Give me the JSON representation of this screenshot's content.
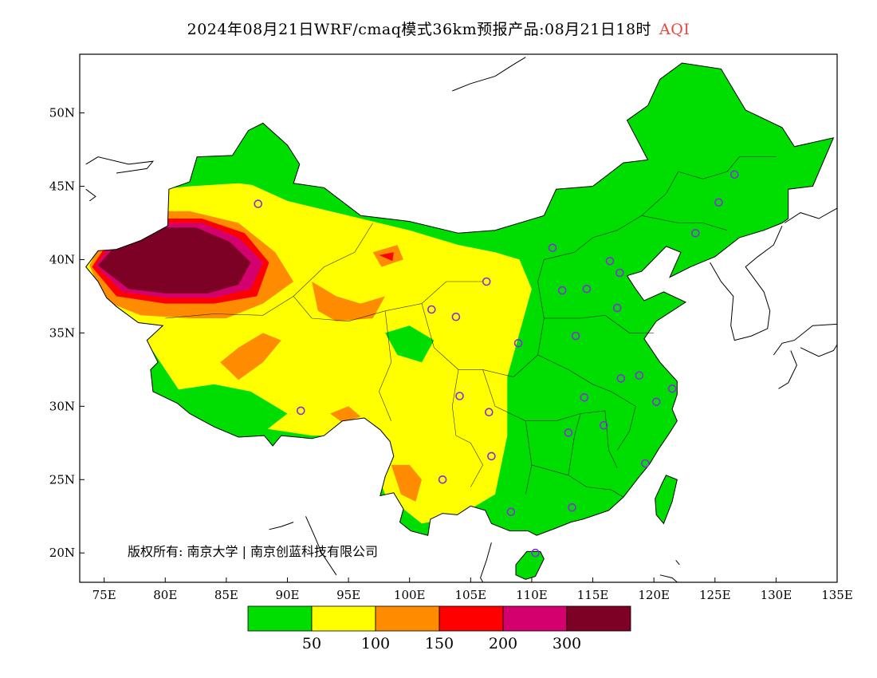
{
  "title": {
    "main": "2024年08月21日WRF/cmaq模式36km预报产品:08月21日18时",
    "highlight": "AQI"
  },
  "map_view": {
    "lon_min": 73,
    "lon_max": 135,
    "lat_min": 18,
    "lat_max": 54
  },
  "lat_ticks": [
    {
      "value": 50,
      "label": "50N"
    },
    {
      "value": 45,
      "label": "45N"
    },
    {
      "value": 40,
      "label": "40N"
    },
    {
      "value": 35,
      "label": "35N"
    },
    {
      "value": 30,
      "label": "30N"
    },
    {
      "value": 25,
      "label": "25N"
    },
    {
      "value": 20,
      "label": "20N"
    }
  ],
  "lon_ticks": [
    {
      "value": 75,
      "label": "75E"
    },
    {
      "value": 80,
      "label": "80E"
    },
    {
      "value": 85,
      "label": "85E"
    },
    {
      "value": 90,
      "label": "90E"
    },
    {
      "value": 95,
      "label": "95E"
    },
    {
      "value": 100,
      "label": "100E"
    },
    {
      "value": 105,
      "label": "105E"
    },
    {
      "value": 110,
      "label": "110E"
    },
    {
      "value": 115,
      "label": "115E"
    },
    {
      "value": 120,
      "label": "120E"
    },
    {
      "value": 125,
      "label": "125E"
    },
    {
      "value": 130,
      "label": "130E"
    },
    {
      "value": 135,
      "label": "135E"
    }
  ],
  "legend": {
    "colors": [
      "#00dd00",
      "#ffff00",
      "#ff8c00",
      "#ff0000",
      "#d4006e",
      "#7d0025"
    ],
    "labels": [
      "50",
      "100",
      "150",
      "200",
      "300"
    ]
  },
  "copyright": "版权所有: 南京大学 | 南京创蓝科技有限公司",
  "colors": {
    "good": "#00dd00",
    "moderate": "#ffff00",
    "unhealthy_sensitive": "#ff8c00",
    "unhealthy": "#ff0000",
    "very_unhealthy": "#d4006e",
    "hazardous": "#7d0025",
    "station_marker": "#8a2be2"
  },
  "stations": [
    [
      87.6,
      43.8
    ],
    [
      126.6,
      45.8
    ],
    [
      125.3,
      43.9
    ],
    [
      123.4,
      41.8
    ],
    [
      111.7,
      40.8
    ],
    [
      116.4,
      39.9
    ],
    [
      117.2,
      39.1
    ],
    [
      114.5,
      38.0
    ],
    [
      112.5,
      37.9
    ],
    [
      117.0,
      36.7
    ],
    [
      106.3,
      38.5
    ],
    [
      101.8,
      36.6
    ],
    [
      103.8,
      36.1
    ],
    [
      108.9,
      34.3
    ],
    [
      113.6,
      34.8
    ],
    [
      118.8,
      32.1
    ],
    [
      117.3,
      31.9
    ],
    [
      121.5,
      31.2
    ],
    [
      120.2,
      30.3
    ],
    [
      114.3,
      30.6
    ],
    [
      104.1,
      30.7
    ],
    [
      106.5,
      29.6
    ],
    [
      91.1,
      29.7
    ],
    [
      113.0,
      28.2
    ],
    [
      115.9,
      28.7
    ],
    [
      106.7,
      26.6
    ],
    [
      119.3,
      26.1
    ],
    [
      102.7,
      25.0
    ],
    [
      113.3,
      23.1
    ],
    [
      108.3,
      22.8
    ],
    [
      110.3,
      20.0
    ]
  ]
}
